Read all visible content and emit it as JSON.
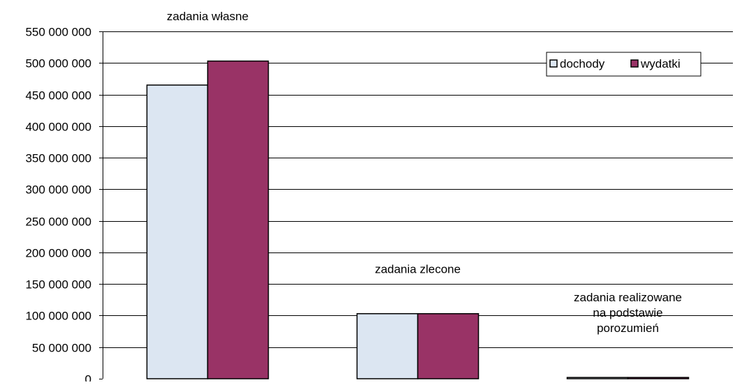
{
  "chart_data": {
    "type": "bar",
    "title": "",
    "xlabel": "",
    "ylabel": "",
    "categories": [
      "zadania własne",
      "zadania zlecone",
      "zadania realizowane na podstawie porozumień"
    ],
    "category_label_lines": [
      [
        "zadania własne"
      ],
      [
        "zadania zlecone"
      ],
      [
        "zadania realizowane",
        "na podstawie",
        "porozumień"
      ]
    ],
    "series": [
      {
        "name": "dochody",
        "color": "#DCE6F2",
        "values": [
          465000000,
          103000000,
          2000000
        ]
      },
      {
        "name": "wydatki",
        "color": "#993366",
        "values": [
          503000000,
          103000000,
          2000000
        ]
      }
    ],
    "ylim": [
      0,
      550000000
    ],
    "yticks": [
      0,
      50000000,
      100000000,
      150000000,
      200000000,
      250000000,
      300000000,
      350000000,
      400000000,
      450000000,
      500000000,
      550000000
    ],
    "ytick_labels": [
      "0",
      "50 000 000",
      "100 000 000",
      "150 000 000",
      "200 000 000",
      "250 000 000",
      "300 000 000",
      "350 000 000",
      "400 000 000",
      "450 000 000",
      "500 000 000",
      "550 000 000"
    ],
    "grid": true,
    "legend_position": "top-right"
  }
}
